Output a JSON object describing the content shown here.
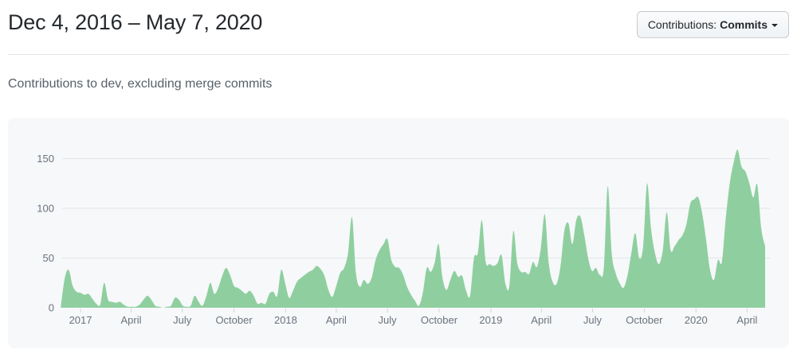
{
  "header": {
    "title": "Dec 4, 2016 – May 7, 2020",
    "filter_button": {
      "prefix": "Contributions:",
      "selected": "Commits"
    }
  },
  "subtitle": "Contributions to dev, excluding merge commits",
  "chart_data": {
    "type": "area",
    "title": "Contributions to dev, excluding merge commits",
    "series_name": "commits-per-week",
    "interval": "weekly",
    "range_start_label": "Dec 4, 2016",
    "range_end_label": "May 7, 2020",
    "ylim": [
      0,
      175
    ],
    "yticks": [
      0,
      50,
      100,
      150
    ],
    "grid": true,
    "legend": "none",
    "xticks": [
      {
        "label": "2017",
        "week": 4.0
      },
      {
        "label": "April",
        "week": 16.86
      },
      {
        "label": "July",
        "week": 29.86
      },
      {
        "label": "October",
        "week": 43.0
      },
      {
        "label": "2018",
        "week": 56.14
      },
      {
        "label": "April",
        "week": 69.0
      },
      {
        "label": "July",
        "week": 82.0
      },
      {
        "label": "October",
        "week": 95.14
      },
      {
        "label": "2019",
        "week": 108.29
      },
      {
        "label": "April",
        "week": 121.14
      },
      {
        "label": "July",
        "week": 134.14
      },
      {
        "label": "October",
        "week": 147.29
      },
      {
        "label": "2020",
        "week": 160.43
      },
      {
        "label": "April",
        "week": 173.43
      }
    ],
    "values": [
      30,
      38,
      22,
      16,
      15,
      13,
      14,
      9,
      4,
      3,
      25,
      8,
      6,
      5,
      6,
      3,
      1,
      1,
      1,
      3,
      8,
      12,
      8,
      2,
      1,
      0,
      1,
      2,
      10,
      8,
      2,
      1,
      2,
      12,
      6,
      2,
      12,
      25,
      14,
      20,
      32,
      40,
      33,
      22,
      20,
      17,
      14,
      17,
      12,
      4,
      5,
      4,
      14,
      16,
      12,
      38,
      25,
      10,
      17,
      26,
      30,
      33,
      36,
      38,
      42,
      39,
      32,
      18,
      11,
      22,
      35,
      40,
      55,
      91,
      35,
      21,
      28,
      24,
      30,
      48,
      58,
      64,
      69,
      48,
      41,
      40,
      33,
      21,
      13,
      7,
      2,
      15,
      40,
      36,
      45,
      64,
      30,
      18,
      28,
      37,
      31,
      32,
      17,
      12,
      50,
      55,
      88,
      46,
      44,
      42,
      45,
      53,
      24,
      22,
      77,
      45,
      36,
      36,
      34,
      46,
      41,
      60,
      94,
      45,
      26,
      24,
      42,
      78,
      85,
      64,
      88,
      92,
      74,
      50,
      37,
      40,
      33,
      40,
      122,
      55,
      35,
      25,
      20,
      32,
      55,
      75,
      50,
      62,
      125,
      80,
      55,
      44,
      58,
      96,
      58,
      62,
      68,
      73,
      84,
      105,
      109,
      111,
      95,
      68,
      38,
      28,
      48,
      46,
      90,
      125,
      146,
      159,
      142,
      137,
      125,
      111,
      124,
      80,
      62
    ],
    "colors": {
      "area": "#8fcf9f",
      "panel_bg": "#f6f8fa",
      "gridline": "#e3e6e8",
      "tick": "#d1d5da",
      "axis_text": "#6a737d"
    }
  }
}
